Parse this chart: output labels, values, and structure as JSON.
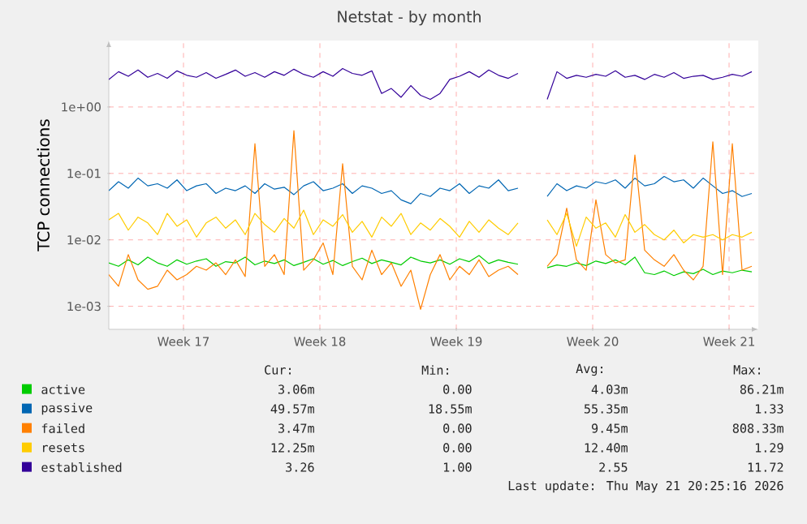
{
  "chart_data": {
    "type": "line",
    "title": "Netstat - by month",
    "ylabel": "TCP connections",
    "log": true,
    "grid": true,
    "legend": "bottom",
    "x": [
      "2026-04-18T12:25",
      "2026-04-19T00:25",
      "2026-04-19T12:25",
      "2026-04-20T00:25",
      "2026-04-20T12:25",
      "2026-04-21T00:25",
      "2026-04-21T12:25",
      "2026-04-22T00:25",
      "2026-04-22T12:25",
      "2026-04-23T00:25",
      "2026-04-23T12:25",
      "2026-04-24T00:25",
      "2026-04-24T12:25",
      "2026-04-25T00:25",
      "2026-04-25T12:25",
      "2026-04-26T00:25",
      "2026-04-26T12:25",
      "2026-04-27T00:25",
      "2026-04-27T12:25",
      "2026-04-28T00:25",
      "2026-04-28T12:25",
      "2026-04-29T00:25",
      "2026-04-29T12:25",
      "2026-04-30T00:25",
      "2026-04-30T12:25",
      "2026-05-01T00:25",
      "2026-05-01T12:25",
      "2026-05-02T00:25",
      "2026-05-02T12:25",
      "2026-05-03T00:25",
      "2026-05-03T12:25",
      "2026-05-04T00:25",
      "2026-05-04T12:25",
      "2026-05-05T00:25",
      "2026-05-05T12:25",
      "2026-05-06T00:25",
      "2026-05-06T12:25",
      "2026-05-07T00:25",
      "2026-05-07T12:25",
      "2026-05-08T00:25",
      "2026-05-08T12:25",
      "2026-05-09T00:25",
      "2026-05-09T12:25",
      "2026-05-10T00:25",
      "2026-05-10T12:25",
      "2026-05-11T00:25",
      "2026-05-11T12:25",
      "2026-05-12T00:25",
      "2026-05-12T12:25",
      "2026-05-13T00:25",
      "2026-05-13T12:25",
      "2026-05-14T00:25",
      "2026-05-14T12:25",
      "2026-05-15T00:25",
      "2026-05-15T12:25",
      "2026-05-16T00:25",
      "2026-05-16T12:25",
      "2026-05-17T00:25",
      "2026-05-17T12:25",
      "2026-05-18T00:25",
      "2026-05-18T12:25",
      "2026-05-19T00:25",
      "2026-05-19T12:25",
      "2026-05-20T00:25",
      "2026-05-20T12:25",
      "2026-05-21T00:25",
      "2026-05-21T12:25"
    ],
    "xlim": [
      "2026-04-18T12:25",
      "2026-05-21T20:25"
    ],
    "xticks": [
      {
        "value": "2026-04-22T08:25",
        "label": "Week 17"
      },
      {
        "value": "2026-04-29T08:25",
        "label": "Week 18"
      },
      {
        "value": "2026-05-06T08:25",
        "label": "Week 19"
      },
      {
        "value": "2026-05-13T08:25",
        "label": "Week 20"
      },
      {
        "value": "2026-05-20T08:25",
        "label": "Week 21"
      }
    ],
    "ylim": [
      0.00045,
      10
    ],
    "yticks": [
      {
        "value": 0.001,
        "label": "1e-03"
      },
      {
        "value": 0.01,
        "label": "1e-02"
      },
      {
        "value": 0.1,
        "label": "1e-01"
      },
      {
        "value": 1,
        "label": "1e+00"
      }
    ],
    "series": [
      {
        "name": "active",
        "color": "#00cc00",
        "values": [
          0.0045,
          0.004,
          0.005,
          0.0042,
          0.0055,
          0.0045,
          0.004,
          0.005,
          0.0043,
          0.0048,
          0.0052,
          0.004,
          0.0047,
          0.0045,
          0.0055,
          0.0042,
          0.0048,
          0.0044,
          0.005,
          0.0041,
          0.0046,
          0.0052,
          0.0043,
          0.0049,
          0.0041,
          0.0047,
          0.0053,
          0.0044,
          0.005,
          0.0046,
          0.0042,
          0.0055,
          0.0048,
          0.0045,
          0.005,
          0.0043,
          0.0052,
          0.0047,
          0.0058,
          0.0044,
          0.005,
          0.0046,
          0.0043,
          null,
          null,
          0.0038,
          0.0042,
          0.004,
          0.0045,
          0.0041,
          0.0048,
          0.0044,
          0.005,
          0.0042,
          0.0055,
          0.0032,
          0.003,
          0.0034,
          0.0029,
          0.0033,
          0.0031,
          0.0036,
          0.003,
          0.0034,
          0.0032,
          0.0035,
          0.0033
        ]
      },
      {
        "name": "passive",
        "color": "#0066b3",
        "values": [
          0.055,
          0.075,
          0.06,
          0.085,
          0.065,
          0.07,
          0.06,
          0.08,
          0.055,
          0.065,
          0.07,
          0.05,
          0.06,
          0.055,
          0.065,
          0.05,
          0.07,
          0.058,
          0.062,
          0.048,
          0.065,
          0.075,
          0.055,
          0.06,
          0.07,
          0.05,
          0.065,
          0.06,
          0.05,
          0.055,
          0.04,
          0.035,
          0.05,
          0.045,
          0.06,
          0.055,
          0.07,
          0.05,
          0.065,
          0.06,
          0.08,
          0.055,
          0.06,
          null,
          null,
          0.045,
          0.07,
          0.055,
          0.065,
          0.06,
          0.075,
          0.07,
          0.08,
          0.06,
          0.085,
          0.065,
          0.07,
          0.09,
          0.075,
          0.08,
          0.06,
          0.085,
          0.065,
          0.05,
          0.055,
          0.045,
          0.05
        ]
      },
      {
        "name": "failed",
        "color": "#ff8000",
        "values": [
          0.003,
          0.002,
          0.006,
          0.0025,
          0.0018,
          0.002,
          0.0035,
          0.0025,
          0.003,
          0.004,
          0.0035,
          0.0045,
          0.003,
          0.005,
          0.0028,
          0.28,
          0.004,
          0.006,
          0.003,
          0.44,
          0.0035,
          0.005,
          0.009,
          0.003,
          0.14,
          0.004,
          0.0025,
          0.007,
          0.003,
          0.0045,
          0.002,
          0.0035,
          0.0009,
          0.003,
          0.006,
          0.0025,
          0.004,
          0.003,
          0.005,
          0.0028,
          0.0035,
          0.004,
          0.003,
          null,
          null,
          0.004,
          0.006,
          0.03,
          0.005,
          0.0035,
          0.04,
          0.006,
          0.0045,
          0.005,
          0.19,
          0.007,
          0.005,
          0.004,
          0.006,
          0.0035,
          0.0025,
          0.004,
          0.3,
          0.003,
          0.28,
          0.0035,
          0.004
        ]
      },
      {
        "name": "resets",
        "color": "#ffcc00",
        "values": [
          0.02,
          0.025,
          0.014,
          0.022,
          0.018,
          0.012,
          0.025,
          0.016,
          0.02,
          0.011,
          0.018,
          0.022,
          0.015,
          0.02,
          0.012,
          0.025,
          0.017,
          0.013,
          0.021,
          0.015,
          0.028,
          0.012,
          0.02,
          0.016,
          0.024,
          0.013,
          0.019,
          0.011,
          0.022,
          0.016,
          0.025,
          0.012,
          0.018,
          0.014,
          0.021,
          0.016,
          0.011,
          0.019,
          0.013,
          0.02,
          0.015,
          0.012,
          0.018,
          null,
          null,
          0.02,
          0.012,
          0.025,
          0.008,
          0.022,
          0.015,
          0.018,
          0.011,
          0.024,
          0.013,
          0.017,
          0.012,
          0.01,
          0.014,
          0.009,
          0.012,
          0.011,
          0.012,
          0.01,
          0.012,
          0.011,
          0.013
        ]
      },
      {
        "name": "established",
        "color": "#330099",
        "values": [
          2.6,
          3.4,
          2.9,
          3.6,
          2.8,
          3.2,
          2.7,
          3.5,
          3.0,
          2.8,
          3.3,
          2.7,
          3.1,
          3.6,
          2.9,
          3.3,
          2.8,
          3.4,
          3.0,
          3.7,
          3.1,
          2.8,
          3.4,
          2.9,
          3.8,
          3.2,
          3.0,
          3.5,
          1.6,
          1.9,
          1.4,
          2.1,
          1.5,
          1.3,
          1.6,
          2.6,
          2.9,
          3.4,
          2.8,
          3.6,
          3.0,
          2.7,
          3.2,
          null,
          null,
          1.3,
          3.4,
          2.7,
          3.0,
          2.8,
          3.1,
          2.9,
          3.5,
          2.8,
          3.0,
          2.6,
          3.1,
          2.8,
          3.3,
          2.7,
          2.9,
          3.0,
          2.6,
          2.8,
          3.1,
          2.9,
          3.4
        ]
      }
    ],
    "annotations": [
      "Cur:",
      "Min:",
      "Avg:",
      "Max:",
      "3.06m",
      "0.00",
      "4.03m",
      "86.21m",
      "49.57m",
      "18.55m",
      "55.35m",
      "1.33",
      "3.47m",
      "0.00",
      "9.45m",
      "808.33m",
      "12.25m",
      "0.00",
      "12.40m",
      "1.29",
      "3.26",
      "1.00",
      "2.55",
      "11.72",
      "Last update: Thu May 21 20:25:16 2026"
    ]
  }
}
